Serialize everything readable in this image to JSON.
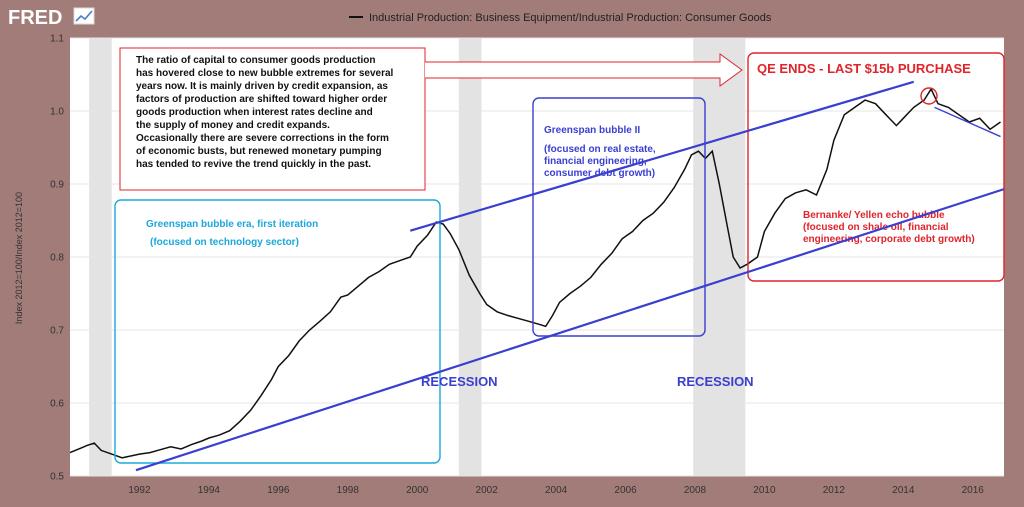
{
  "header": {
    "logo_text": "FRED",
    "legend_label": "Industrial Production: Business Equipment/Industrial Production: Consumer Goods"
  },
  "colors": {
    "frame": "#a27c78",
    "plot_bg": "#ffffff",
    "line": "#111111",
    "recession": "#e3e3e3",
    "trend": "#3a3fd0",
    "red": "#e0242b",
    "cyan": "#1ba8dc"
  },
  "annotations": {
    "intro_text": [
      "The ratio of capital to consumer goods production",
      "has hovered close to new bubble extremes for several",
      "years now. It is mainly driven by credit expansion, as",
      "factors of production are shifted toward higher order",
      "goods production when interest rates decline and",
      "the supply of money and credit expands.",
      "",
      "Occasionally there are severe corrections in the form",
      "of economic busts, but renewed monetary pumping",
      "has tended to revive the trend quickly in the past."
    ],
    "qe_ends": "QE ENDS - LAST $15b PURCHASE",
    "bubble1_title": "Greenspan bubble era, first iteration",
    "bubble1_sub": "(focused on technology sector)",
    "bubble2_title": "Greenspan bubble II",
    "bubble2_sub": [
      "(focused on real estate,",
      "financial engineering,",
      "consumer debt growth)"
    ],
    "bubble3_title": "Bernanke/ Yellen echo bubble",
    "bubble3_sub": [
      "(focused on shale oil, financial",
      "engineering, corporate debt growth)"
    ],
    "recession_label_1": "RECESSION",
    "recession_label_2": "RECESSION"
  },
  "chart_data": {
    "type": "line",
    "title": "Industrial Production: Business Equipment/Industrial Production: Consumer Goods",
    "xlabel": "",
    "ylabel": "Index 2012=100/Index 2012=100",
    "xlim": [
      1990.0,
      2016.9
    ],
    "ylim": [
      0.5,
      1.1
    ],
    "x_ticks": [
      1992,
      1994,
      1996,
      1998,
      2000,
      2002,
      2004,
      2006,
      2008,
      2010,
      2012,
      2014,
      2016
    ],
    "y_ticks": [
      0.5,
      0.6,
      0.7,
      0.8,
      0.9,
      1.0,
      1.1
    ],
    "recessions": [
      [
        1990.55,
        1991.2
      ],
      [
        2001.2,
        2001.85
      ],
      [
        2007.95,
        2009.45
      ]
    ],
    "series": [
      {
        "name": "Business Equipment / Consumer Goods",
        "x": [
          1990.0,
          1990.3,
          1990.5,
          1990.7,
          1990.9,
          1991.2,
          1991.5,
          1991.8,
          1992.0,
          1992.3,
          1992.6,
          1992.9,
          1993.2,
          1993.5,
          1993.8,
          1994.0,
          1994.3,
          1994.6,
          1994.9,
          1995.2,
          1995.5,
          1995.8,
          1996.0,
          1996.3,
          1996.6,
          1996.9,
          1997.2,
          1997.5,
          1997.8,
          1998.0,
          1998.3,
          1998.6,
          1998.9,
          1999.2,
          1999.5,
          1999.8,
          2000.0,
          2000.3,
          2000.55,
          2000.75,
          2000.95,
          2001.2,
          2001.5,
          2001.8,
          2002.0,
          2002.3,
          2002.6,
          2002.9,
          2003.2,
          2003.5,
          2003.7,
          2003.9,
          2004.1,
          2004.4,
          2004.7,
          2005.0,
          2005.3,
          2005.6,
          2005.9,
          2006.2,
          2006.5,
          2006.8,
          2007.1,
          2007.4,
          2007.7,
          2007.9,
          2008.1,
          2008.3,
          2008.5,
          2008.7,
          2008.9,
          2009.1,
          2009.3,
          2009.5,
          2009.8,
          2010.0,
          2010.3,
          2010.6,
          2010.9,
          2011.2,
          2011.5,
          2011.8,
          2012.0,
          2012.3,
          2012.6,
          2012.9,
          2013.2,
          2013.5,
          2013.8,
          2014.0,
          2014.3,
          2014.6,
          2014.8,
          2015.0,
          2015.3,
          2015.6,
          2015.9,
          2016.2,
          2016.5,
          2016.8
        ],
        "y": [
          0.532,
          0.538,
          0.542,
          0.545,
          0.535,
          0.53,
          0.525,
          0.528,
          0.53,
          0.532,
          0.536,
          0.54,
          0.537,
          0.543,
          0.548,
          0.552,
          0.556,
          0.562,
          0.575,
          0.59,
          0.61,
          0.632,
          0.65,
          0.665,
          0.685,
          0.7,
          0.712,
          0.725,
          0.745,
          0.748,
          0.76,
          0.772,
          0.78,
          0.79,
          0.795,
          0.8,
          0.815,
          0.83,
          0.848,
          0.845,
          0.832,
          0.81,
          0.775,
          0.75,
          0.735,
          0.725,
          0.72,
          0.716,
          0.712,
          0.708,
          0.705,
          0.72,
          0.738,
          0.75,
          0.76,
          0.772,
          0.79,
          0.805,
          0.825,
          0.835,
          0.85,
          0.86,
          0.875,
          0.895,
          0.92,
          0.94,
          0.945,
          0.935,
          0.945,
          0.9,
          0.85,
          0.8,
          0.785,
          0.79,
          0.8,
          0.835,
          0.86,
          0.88,
          0.888,
          0.892,
          0.885,
          0.92,
          0.96,
          0.995,
          1.005,
          1.015,
          1.01,
          0.995,
          0.98,
          0.99,
          1.005,
          1.015,
          1.03,
          1.01,
          1.005,
          0.995,
          0.985,
          0.99,
          0.975,
          0.985
        ]
      }
    ],
    "trend_lines": [
      {
        "name": "lower-channel",
        "x": [
          1991.9,
          2016.9
        ],
        "y": [
          0.508,
          0.893
        ]
      },
      {
        "name": "upper-channel",
        "x": [
          1999.8,
          2014.3
        ],
        "y": [
          0.836,
          1.04
        ]
      },
      {
        "name": "recent-decline",
        "x": [
          2014.9,
          2016.8
        ],
        "y": [
          1.005,
          0.965
        ]
      }
    ]
  }
}
